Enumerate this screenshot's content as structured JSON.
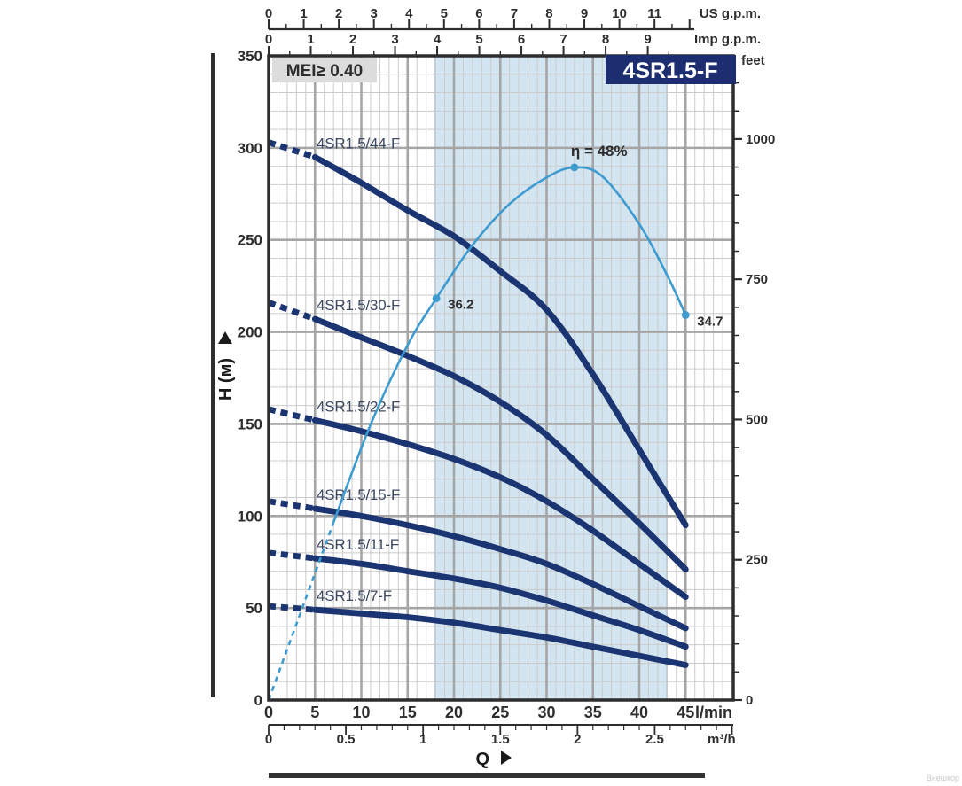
{
  "title_badge": "4SR1.5-F",
  "mei_label": "MEI≥ 0.40",
  "watermark": "Внешкор",
  "colors": {
    "curve_navy": "#1b3472",
    "efficiency_blue": "#3d9bd0",
    "band_fill": "#d3e5f0",
    "band_edge": "#b9d2e2",
    "badge_bg": "#1c2e6f",
    "mei_bg": "#dcdcdc",
    "grid_minor": "#cbcbcb",
    "grid_major": "#a5a5a5",
    "frame": "#2d2d2d"
  },
  "axes": {
    "us_gpm": {
      "unit": "US g.p.m.",
      "ticks": [
        0,
        1,
        2,
        3,
        4,
        5,
        6,
        7,
        8,
        9,
        10,
        11
      ]
    },
    "imp_gpm": {
      "unit": "Imp g.p.m.",
      "ticks": [
        0,
        1,
        2,
        3,
        4,
        5,
        6,
        7,
        8,
        9
      ]
    },
    "feet": {
      "unit": "feet",
      "ticks": [
        0,
        250,
        500,
        750,
        1000
      ]
    },
    "lmin": {
      "unit": "l/min",
      "ticks": [
        0,
        5,
        10,
        15,
        20,
        25,
        30,
        35,
        40,
        45
      ]
    },
    "m3h": {
      "unit": "m³/h",
      "ticks": [
        0,
        0.5,
        1,
        1.5,
        2,
        2.5
      ]
    },
    "head_m": {
      "unit_label": "H (м)",
      "ticks": [
        0,
        50,
        100,
        150,
        200,
        250,
        300,
        350
      ]
    },
    "q_label": "Q"
  },
  "chart_data": {
    "type": "line",
    "title": "4SR1.5-F",
    "xlabel": "Q",
    "ylabel": "H (м)",
    "x_unit": "l/min",
    "y_unit": "m",
    "xlim": [
      0,
      50
    ],
    "ylim": [
      0,
      350
    ],
    "grid": "minor 1 l/min × 10 m, major 5 l/min × 50 m",
    "operating_range_lmin": [
      18,
      43
    ],
    "x": [
      0,
      5,
      10,
      15,
      20,
      25,
      30,
      35,
      40,
      45
    ],
    "series": [
      {
        "name": "4SR1.5/44-F",
        "values": [
          303,
          295,
          281,
          266,
          252,
          233,
          212,
          177,
          136,
          95
        ]
      },
      {
        "name": "4SR1.5/30-F",
        "values": [
          216,
          207,
          197,
          187,
          176,
          162,
          144,
          120,
          96,
          71
        ]
      },
      {
        "name": "4SR1.5/22-F",
        "values": [
          158,
          152,
          146,
          139,
          131,
          121,
          108,
          92,
          74,
          56
        ]
      },
      {
        "name": "4SR1.5/15-F",
        "values": [
          108,
          104,
          100,
          95,
          89,
          82,
          74,
          63,
          51,
          39
        ]
      },
      {
        "name": "4SR1.5/11-F",
        "values": [
          80,
          77,
          74,
          70,
          66,
          61,
          54,
          46,
          38,
          29
        ]
      },
      {
        "name": "4SR1.5/7-F",
        "values": [
          51,
          49,
          47,
          45,
          42,
          38,
          34,
          29,
          24,
          19
        ]
      }
    ],
    "dashed_until_lmin": 5,
    "efficiency_curve": {
      "name": "η (%)",
      "points": [
        [
          0,
          0
        ],
        [
          3.5,
          8
        ],
        [
          7,
          16
        ],
        [
          11,
          24.8
        ],
        [
          15,
          32
        ],
        [
          18.1,
          36.2
        ],
        [
          22,
          41
        ],
        [
          26,
          44.7
        ],
        [
          30,
          47.1
        ],
        [
          33,
          48
        ],
        [
          36,
          47.2
        ],
        [
          40,
          42.9
        ],
        [
          43,
          38.3
        ],
        [
          45,
          34.7
        ]
      ],
      "dashed_until_lmin": 7,
      "markers": [
        {
          "q": 18.1,
          "eta": 36.2,
          "label": "36.2",
          "label_pos": "right-below"
        },
        {
          "q": 33,
          "eta": 48,
          "label": "η = 48%",
          "label_pos": "above"
        },
        {
          "q": 45,
          "eta": 34.7,
          "label": "34.7",
          "label_pos": "right-below"
        }
      ]
    }
  }
}
